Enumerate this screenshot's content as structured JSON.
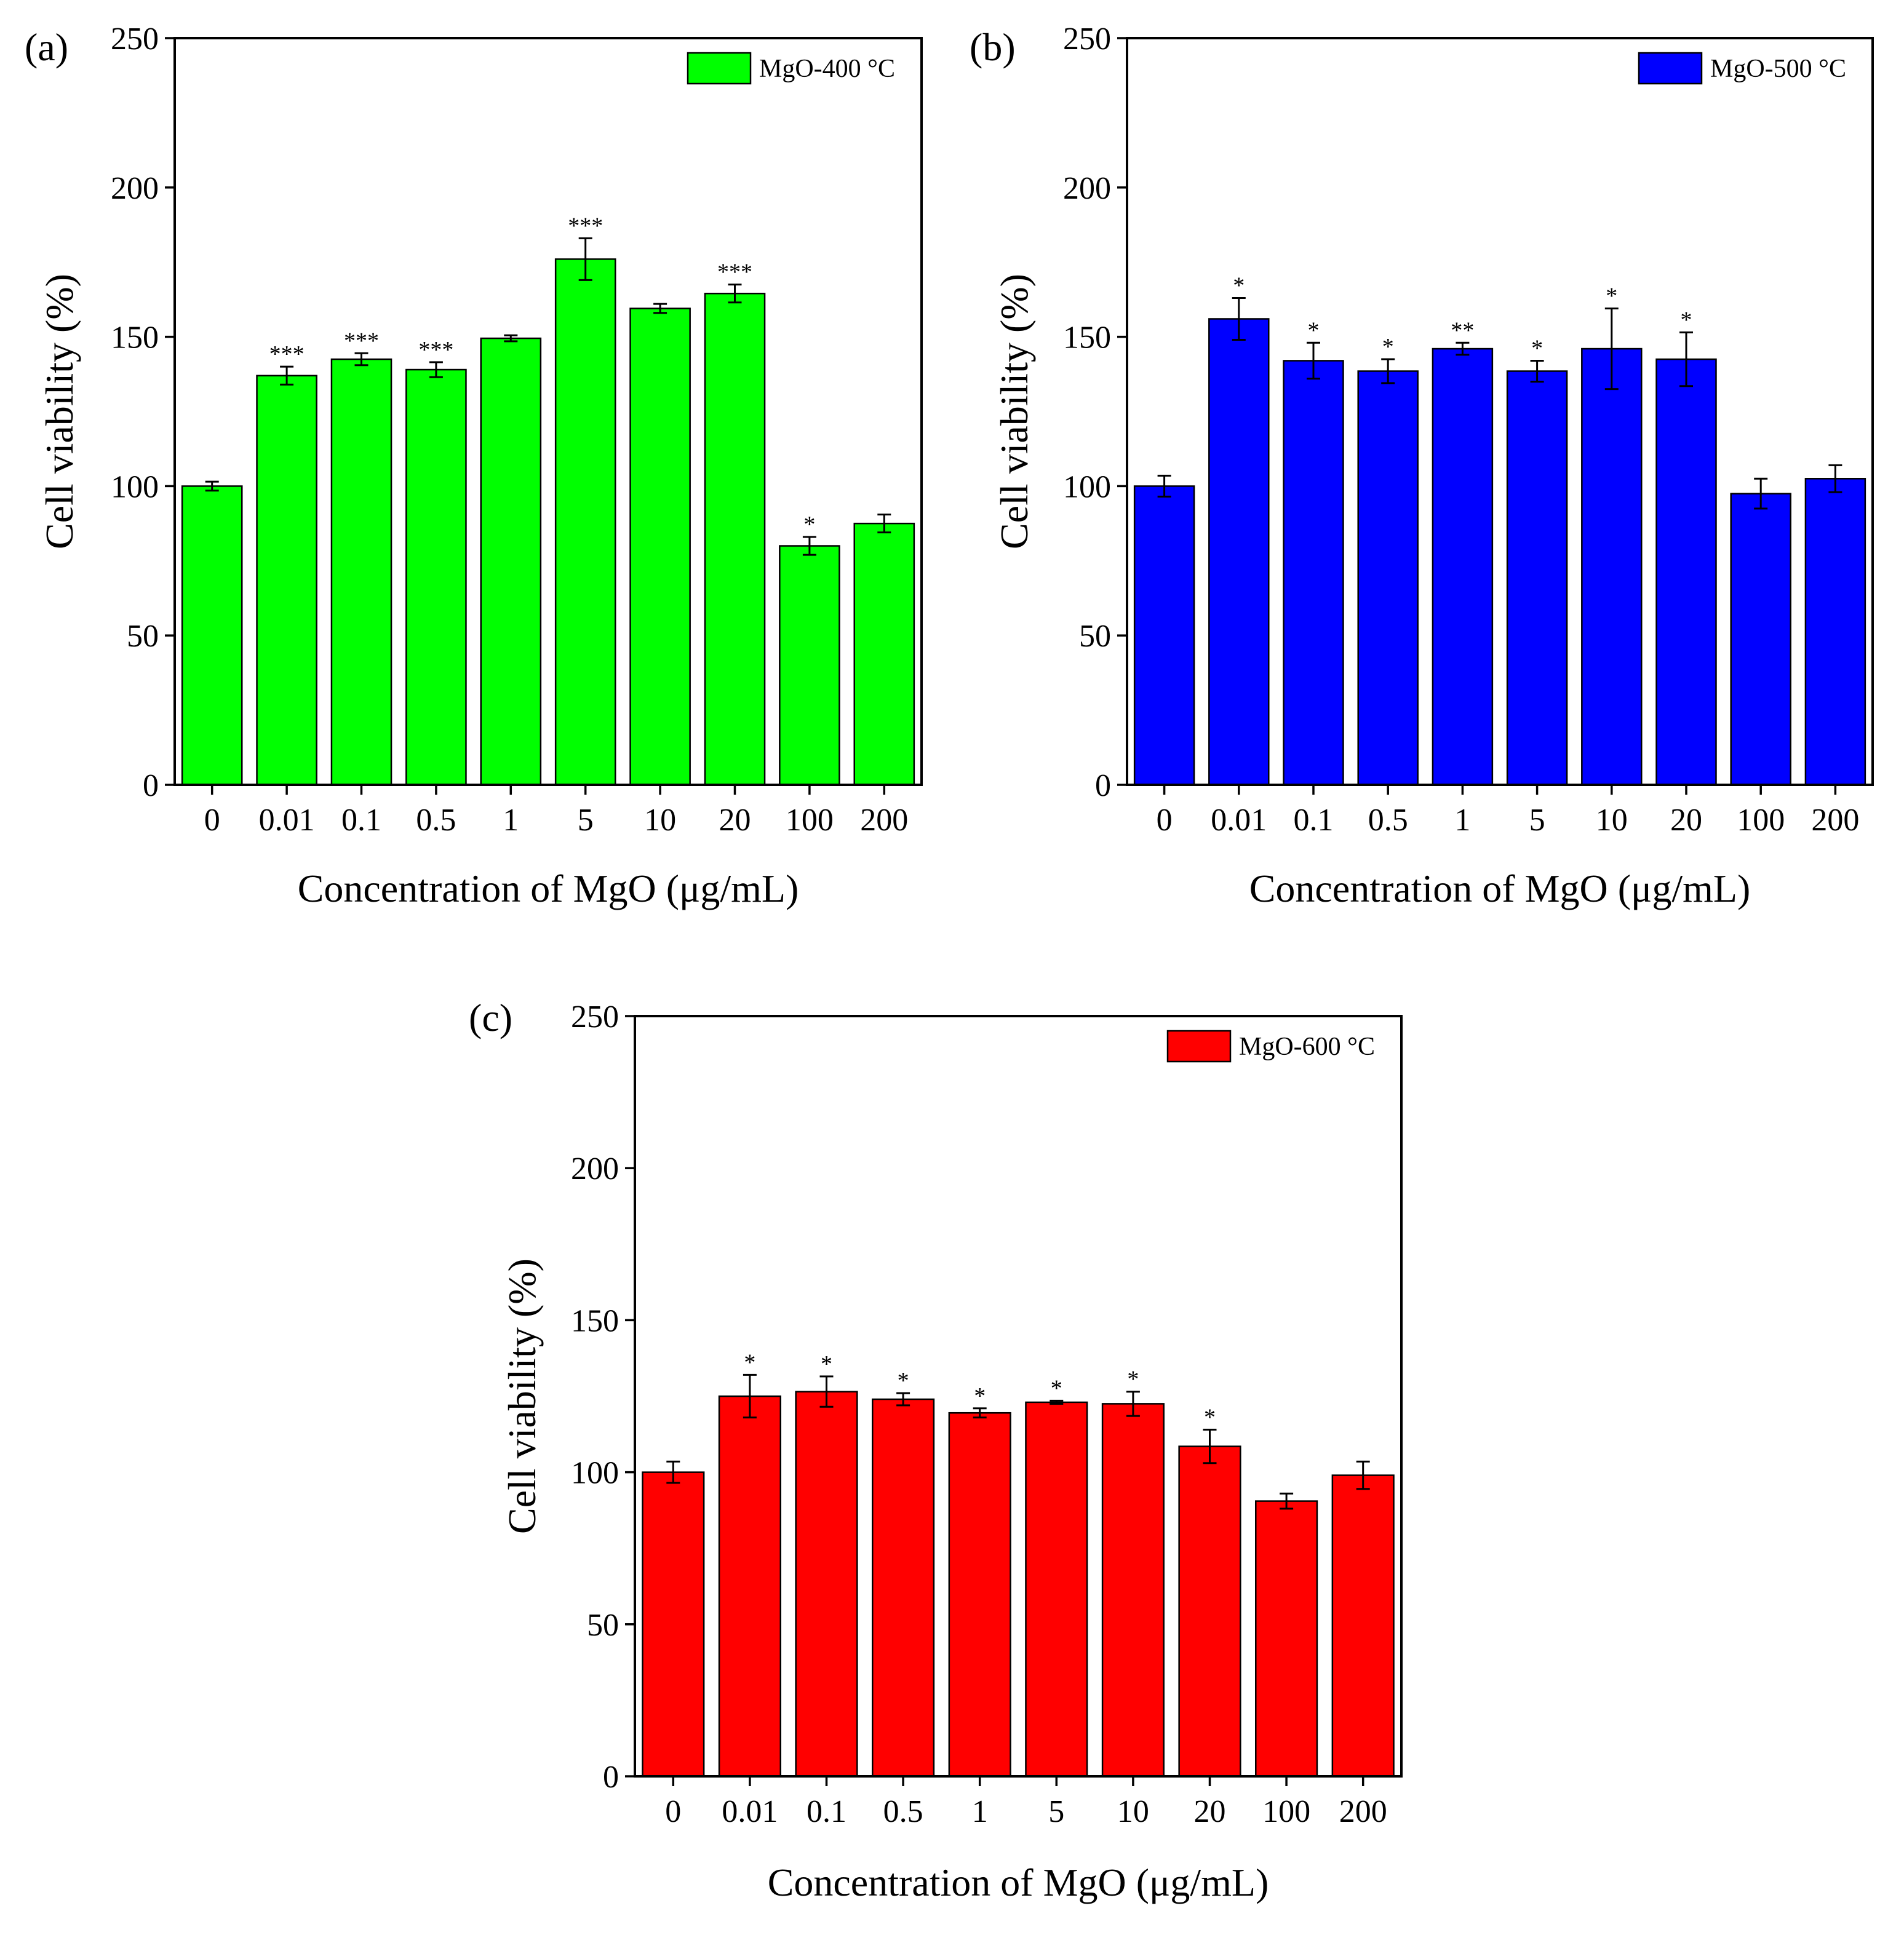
{
  "chart_data": [
    {
      "type": "bar",
      "panel_label": "(a)",
      "legend": "MgO-400 °C",
      "legend_position": "top-right",
      "color": "#00ff00",
      "xlabel": "Concentration of MgO (μg/mL)",
      "ylabel": "Cell viability (%)",
      "ylim": [
        0,
        250
      ],
      "yticks": [
        "0",
        "50",
        "100",
        "150",
        "200",
        "250"
      ],
      "categories": [
        "0",
        "0.01",
        "0.1",
        "0.5",
        "1",
        "5",
        "10",
        "20",
        "100",
        "200"
      ],
      "values": [
        100,
        137,
        142.5,
        139,
        149.5,
        176,
        159.5,
        164.5,
        80,
        87.5
      ],
      "errors": [
        1.5,
        3,
        2,
        2.5,
        1,
        7,
        1.5,
        3,
        3,
        3
      ],
      "significance": [
        "",
        "***",
        "***",
        "***",
        "",
        "***",
        "",
        "***",
        "*",
        ""
      ]
    },
    {
      "type": "bar",
      "panel_label": "(b)",
      "legend": "MgO-500 °C",
      "legend_position": "top-right",
      "color": "#0000ff",
      "xlabel": "Concentration of MgO (μg/mL)",
      "ylabel": "Cell viability (%)",
      "ylim": [
        0,
        250
      ],
      "yticks": [
        "0",
        "50",
        "100",
        "150",
        "200",
        "250"
      ],
      "categories": [
        "0",
        "0.01",
        "0.1",
        "0.5",
        "1",
        "5",
        "10",
        "20",
        "100",
        "200"
      ],
      "values": [
        100,
        156,
        142,
        138.5,
        146,
        138.5,
        146,
        142.5,
        97.5,
        102.5
      ],
      "errors": [
        3.5,
        7,
        6,
        4,
        2,
        3.5,
        13.5,
        9,
        5,
        4.5
      ],
      "significance": [
        "",
        "*",
        "*",
        "*",
        "**",
        "*",
        "*",
        "*",
        "",
        ""
      ]
    },
    {
      "type": "bar",
      "panel_label": "(c)",
      "legend": "MgO-600 °C",
      "legend_position": "top-right",
      "color": "#ff0000",
      "xlabel": "Concentration of MgO (μg/mL)",
      "ylabel": "Cell viability (%)",
      "ylim": [
        0,
        250
      ],
      "yticks": [
        "0",
        "50",
        "100",
        "150",
        "200",
        "250"
      ],
      "categories": [
        "0",
        "0.01",
        "0.1",
        "0.5",
        "1",
        "5",
        "10",
        "20",
        "100",
        "200"
      ],
      "values": [
        100,
        125,
        126.5,
        124,
        119.5,
        123,
        122.5,
        108.5,
        90.5,
        99
      ],
      "errors": [
        3.5,
        7,
        5,
        2,
        1.5,
        0.5,
        4,
        5.5,
        2.5,
        4.5
      ],
      "significance": [
        "",
        "*",
        "*",
        "*",
        "*",
        "*",
        "*",
        "*",
        "",
        ""
      ]
    }
  ]
}
